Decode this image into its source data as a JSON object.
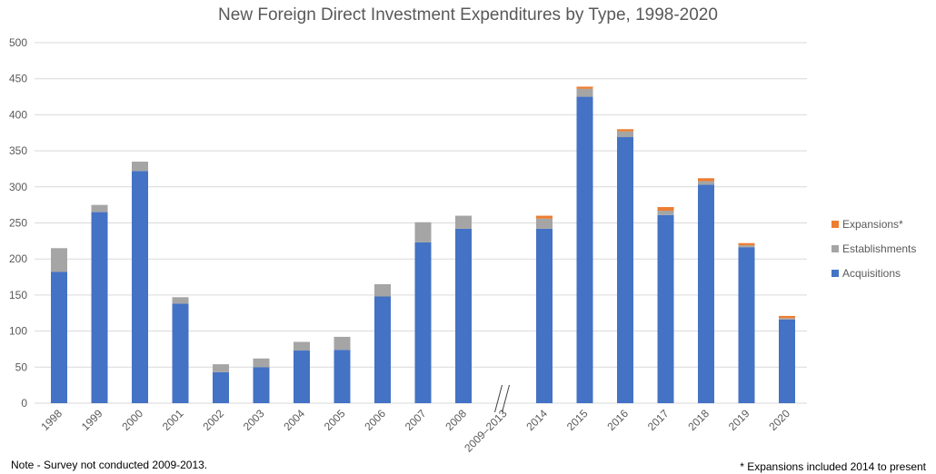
{
  "chart_data": {
    "type": "bar",
    "stacked": true,
    "title": "New Foreign Direct Investment Expenditures by Type, 1998-2020",
    "categories": [
      "1998",
      "1999",
      "2000",
      "2001",
      "2002",
      "2003",
      "2004",
      "2005",
      "2006",
      "2007",
      "2008",
      "2009–2013",
      "2014",
      "2015",
      "2016",
      "2017",
      "2018",
      "2019",
      "2020"
    ],
    "series": [
      {
        "name": "Acquisitions",
        "color": "#4472C4",
        "values": [
          182,
          265,
          322,
          138,
          43,
          50,
          73,
          74,
          148,
          223,
          242,
          null,
          242,
          425,
          369,
          261,
          303,
          216,
          116
        ]
      },
      {
        "name": "Establishments",
        "color": "#A5A5A5",
        "values": [
          33,
          10,
          13,
          9,
          11,
          12,
          12,
          18,
          17,
          28,
          18,
          null,
          14,
          11,
          8,
          6,
          5,
          3,
          2
        ]
      },
      {
        "name": "Expansions*",
        "color": "#ED7D31",
        "values": [
          null,
          null,
          null,
          null,
          null,
          null,
          null,
          null,
          null,
          null,
          null,
          null,
          4,
          3,
          3,
          5,
          4,
          3,
          3
        ]
      }
    ],
    "ylim": [
      0,
      500
    ],
    "yticks": [
      0,
      50,
      100,
      150,
      200,
      250,
      300,
      350,
      400,
      450,
      500
    ],
    "grid": true,
    "legend_position": "right",
    "axis_break_category": "2009–2013"
  },
  "notes": {
    "left": "Note - Survey not conducted 2009-2013.",
    "right": "* Expansions included 2014 to present"
  }
}
